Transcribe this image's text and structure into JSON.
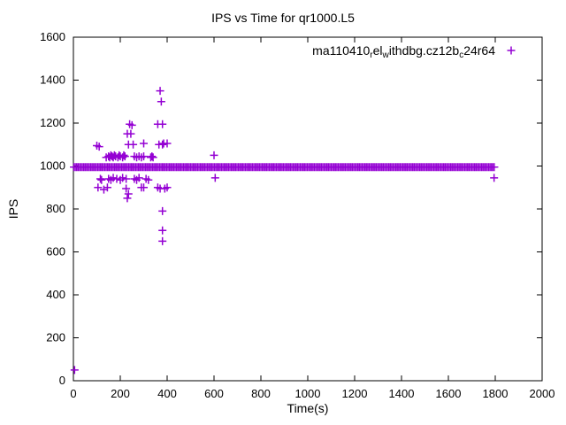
{
  "title": "IPS vs Time for qr1000.L5",
  "chart_data": {
    "type": "scatter",
    "title": "IPS vs Time for qr1000.L5",
    "xlabel": "Time(s)",
    "ylabel": "IPS",
    "xlim": [
      0,
      2000
    ],
    "ylim": [
      0,
      1600
    ],
    "xticks": [
      0,
      200,
      400,
      600,
      800,
      1000,
      1200,
      1400,
      1600,
      1800,
      2000
    ],
    "yticks": [
      0,
      200,
      400,
      600,
      800,
      1000,
      1200,
      1400,
      1600
    ],
    "grid": false,
    "marker": "plus",
    "color": "#9400d3",
    "legend": {
      "position": "top-right",
      "label_plain": "ma110410_rel_withdbg.cz12b_c24r64",
      "segments": [
        {
          "text": "ma110410",
          "sub": false
        },
        {
          "text": "r",
          "sub": true
        },
        {
          "text": "el",
          "sub": false
        },
        {
          "text": "w",
          "sub": true
        },
        {
          "text": "ithdbg.cz12b",
          "sub": false
        },
        {
          "text": "c",
          "sub": true
        },
        {
          "text": "24r64",
          "sub": false
        }
      ]
    },
    "band": {
      "y": 995,
      "x_start": 2,
      "x_end": 1800,
      "step": 6
    },
    "points": [
      [
        5,
        50
      ],
      [
        100,
        1095
      ],
      [
        110,
        1090
      ],
      [
        115,
        940
      ],
      [
        120,
        935
      ],
      [
        105,
        900
      ],
      [
        130,
        890
      ],
      [
        140,
        1040
      ],
      [
        150,
        1045
      ],
      [
        155,
        1040
      ],
      [
        160,
        1050
      ],
      [
        165,
        1045
      ],
      [
        170,
        1040
      ],
      [
        175,
        1050
      ],
      [
        180,
        1045
      ],
      [
        190,
        1040
      ],
      [
        195,
        1050
      ],
      [
        200,
        1045
      ],
      [
        210,
        1040
      ],
      [
        215,
        1050
      ],
      [
        220,
        1045
      ],
      [
        150,
        940
      ],
      [
        160,
        935
      ],
      [
        170,
        945
      ],
      [
        185,
        940
      ],
      [
        200,
        935
      ],
      [
        210,
        945
      ],
      [
        225,
        940
      ],
      [
        145,
        900
      ],
      [
        225,
        895
      ],
      [
        230,
        850
      ],
      [
        235,
        870
      ],
      [
        230,
        1150
      ],
      [
        235,
        1100
      ],
      [
        240,
        1195
      ],
      [
        245,
        1150
      ],
      [
        250,
        1190
      ],
      [
        255,
        1100
      ],
      [
        260,
        1045
      ],
      [
        270,
        1040
      ],
      [
        280,
        1045
      ],
      [
        290,
        1040
      ],
      [
        300,
        1105
      ],
      [
        300,
        1045
      ],
      [
        310,
        940
      ],
      [
        300,
        900
      ],
      [
        320,
        935
      ],
      [
        260,
        940
      ],
      [
        270,
        935
      ],
      [
        280,
        945
      ],
      [
        290,
        900
      ],
      [
        330,
        1040
      ],
      [
        335,
        1045
      ],
      [
        340,
        1040
      ],
      [
        360,
        1195
      ],
      [
        365,
        1100
      ],
      [
        370,
        1350
      ],
      [
        375,
        1300
      ],
      [
        380,
        1195
      ],
      [
        380,
        1100
      ],
      [
        385,
        1105
      ],
      [
        360,
        900
      ],
      [
        370,
        895
      ],
      [
        380,
        790
      ],
      [
        380,
        700
      ],
      [
        380,
        650
      ],
      [
        390,
        895
      ],
      [
        400,
        1105
      ],
      [
        400,
        900
      ],
      [
        600,
        1050
      ],
      [
        605,
        945
      ],
      [
        1795,
        945
      ]
    ]
  }
}
